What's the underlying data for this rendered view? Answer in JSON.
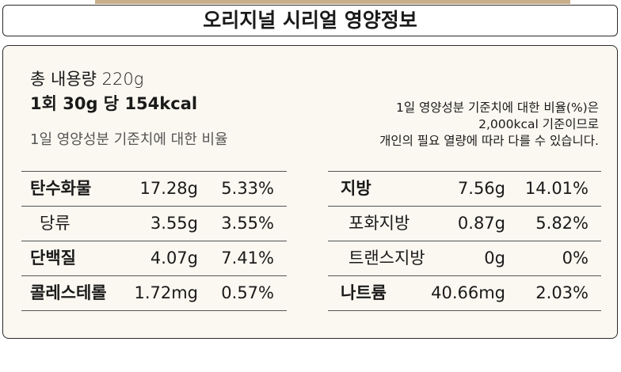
{
  "header": {
    "title": "오리지널 시리얼 영양정보"
  },
  "summary": {
    "total": "총 내용량 220g",
    "serving": "1회 30g 당 154kcal",
    "ratio_caption": "1일 영양성분 기준치에 대한 비율"
  },
  "note": [
    "1일 영양성분 기준치에 대한 비율(%)은",
    "2,000kcal 기준이므로",
    "개인의 필요 열량에 따라 다를 수 있습니다."
  ],
  "tables": [
    {
      "rows": [
        [
          "탄수화물",
          "17.28g",
          "5.33%"
        ],
        [
          "당류",
          "3.55g",
          "3.55%"
        ],
        [
          "단백질",
          "4.07g",
          "7.41%"
        ],
        [
          "콜레스테롤",
          "1.72mg",
          "0.57%"
        ]
      ]
    },
    {
      "rows": [
        [
          "지방",
          "7.56g",
          "14.01%"
        ],
        [
          "포화지방",
          "0.87g",
          "5.82%"
        ],
        [
          "트랜스지방",
          "0g",
          "0%"
        ],
        [
          "나트륨",
          "40.66mg",
          "2.03%"
        ]
      ]
    }
  ]
}
